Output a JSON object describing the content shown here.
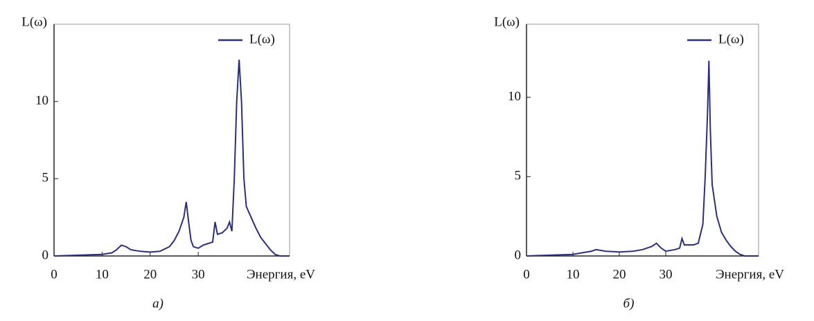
{
  "chart_data": [
    {
      "type": "line",
      "y_label": "L(ω)",
      "x_label": "Энергия, eV",
      "caption": "а)",
      "xlim": [
        0,
        49
      ],
      "xticks": [
        0,
        10,
        20,
        30
      ],
      "ylim": [
        0,
        15
      ],
      "yticks": [
        0,
        5,
        10
      ],
      "series": [
        {
          "name": "L(ω)",
          "color": "#2b2f7a",
          "x": [
            0,
            5,
            10,
            12,
            13,
            14,
            15,
            16,
            18,
            20,
            22,
            24,
            25,
            26,
            27,
            27.5,
            28,
            28.5,
            29,
            30,
            31,
            32,
            33,
            33.5,
            34,
            35,
            36,
            36.5,
            37,
            37.5,
            38,
            38.5,
            39,
            39.5,
            40,
            41,
            42,
            43,
            44,
            45,
            46,
            47,
            49
          ],
          "values": [
            0,
            0.05,
            0.1,
            0.2,
            0.4,
            0.7,
            0.6,
            0.4,
            0.3,
            0.25,
            0.3,
            0.6,
            1.0,
            1.6,
            2.5,
            3.5,
            2.2,
            1.0,
            0.6,
            0.5,
            0.7,
            0.8,
            0.9,
            2.2,
            1.4,
            1.5,
            1.8,
            2.2,
            1.6,
            5,
            10,
            12.7,
            10,
            5,
            3.2,
            2.5,
            1.8,
            1.2,
            0.8,
            0.4,
            0.1,
            0,
            0
          ]
        }
      ]
    },
    {
      "type": "line",
      "y_label": "L(ω)",
      "x_label": "Энергия, eV",
      "caption": "б)",
      "xlim": [
        0,
        50
      ],
      "xticks": [
        0,
        10,
        20,
        30
      ],
      "ylim": [
        0,
        14.6
      ],
      "yticks": [
        0,
        5,
        10
      ],
      "series": [
        {
          "name": "L(ω)",
          "color": "#2b2f7a",
          "x": [
            0,
            10,
            12,
            14,
            15,
            17,
            20,
            23,
            25,
            27,
            28,
            29,
            30,
            32,
            33,
            33.5,
            34,
            36,
            37,
            38,
            38.5,
            39,
            39.3,
            39.6,
            40,
            41,
            42,
            43,
            44,
            45,
            46,
            47,
            50
          ],
          "values": [
            0,
            0.1,
            0.2,
            0.3,
            0.4,
            0.3,
            0.25,
            0.3,
            0.4,
            0.6,
            0.8,
            0.5,
            0.3,
            0.4,
            0.5,
            1.1,
            0.7,
            0.7,
            0.8,
            2.0,
            5,
            9,
            12.3,
            8,
            4.5,
            2.5,
            1.5,
            1.0,
            0.6,
            0.3,
            0.1,
            0,
            0
          ]
        }
      ]
    }
  ]
}
